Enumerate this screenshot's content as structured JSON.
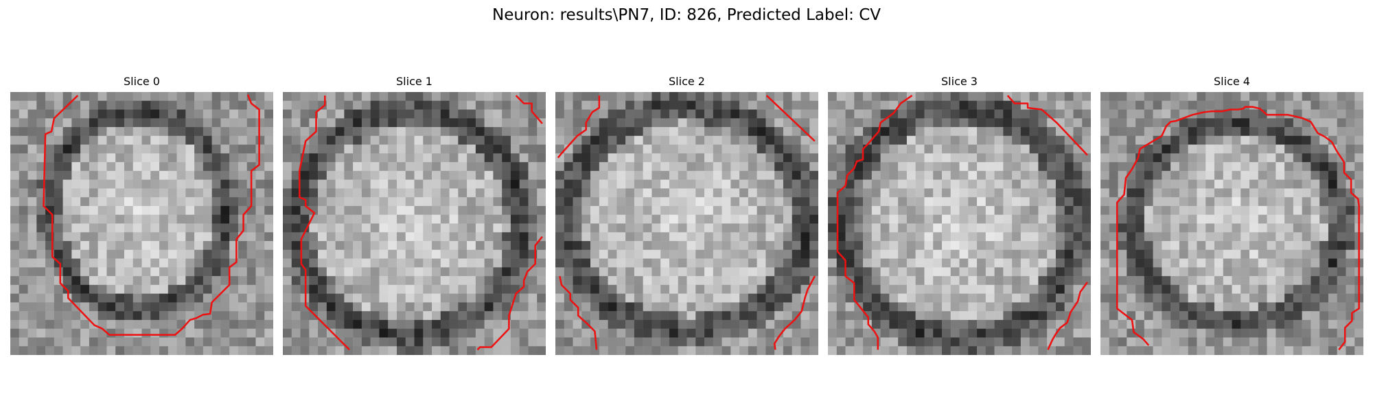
{
  "figure": {
    "title": "Neuron: results\\PN7, ID: 826, Predicted Label: CV"
  },
  "colors": {
    "contour": "#ee1111",
    "background": "#ffffff"
  },
  "panels": [
    {
      "title": "Slice 0",
      "content": "grayscale microscopy patch with red contour outlining neuron"
    },
    {
      "title": "Slice 1",
      "content": "grayscale microscopy patch with red contour outlining neuron"
    },
    {
      "title": "Slice 2",
      "content": "grayscale microscopy patch with red contour outlining neuron"
    },
    {
      "title": "Slice 3",
      "content": "grayscale microscopy patch with red contour outlining neuron"
    },
    {
      "title": "Slice 4",
      "content": "grayscale microscopy patch with red contour outlining neuron"
    }
  ]
}
